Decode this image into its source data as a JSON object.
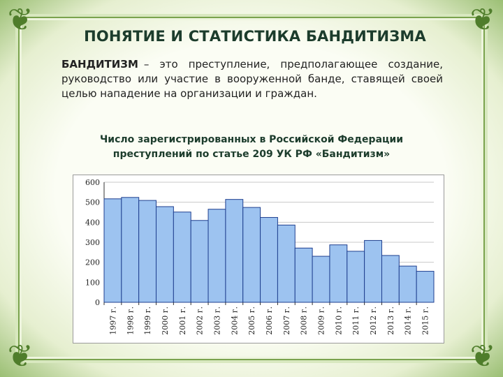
{
  "page": {
    "title": "ПОНЯТИЕ И СТАТИСТИКА БАНДИТИЗМА",
    "definition_term": "БАНДИТИЗМ",
    "definition_text": "– это преступление, предполагающее создание, руководство или участие в вооруженной банде, ставящей своей целью нападение на организации и граждан."
  },
  "chart_data": {
    "type": "bar",
    "title": "Число зарегистрированных в Российской Федерации преступлений по статье 209 УК РФ «Бандитизм»",
    "categories": [
      "1997 г.",
      "1998 г.",
      "1999 г.",
      "2000 г.",
      "2001 г.",
      "2002 г.",
      "2003 г.",
      "2004 г.",
      "2005 г.",
      "2006 г.",
      "2007 г.",
      "2008 г.",
      "2009 г.",
      "2010 г.",
      "2011 г.",
      "2012 г.",
      "2013 г.",
      "2014 г.",
      "2015 г."
    ],
    "values": [
      517,
      524,
      509,
      478,
      451,
      409,
      465,
      514,
      474,
      424,
      386,
      271,
      230,
      287,
      255,
      309,
      234,
      181,
      155
    ],
    "ylim": [
      0,
      600
    ],
    "yticks": [
      0,
      100,
      200,
      300,
      400,
      500,
      600
    ],
    "grid": "horizontal",
    "bar_color": "#9dc3f0",
    "bar_stroke": "#1f3f8f"
  }
}
